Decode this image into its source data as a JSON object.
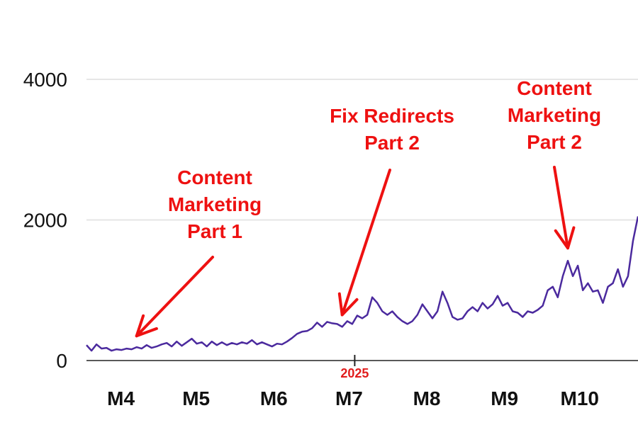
{
  "chart_data": {
    "type": "line",
    "title": "",
    "xlabel": "",
    "ylabel": "",
    "ylim": [
      0,
      4000
    ],
    "yticks": [
      0,
      2000,
      4000
    ],
    "xlim": [
      "2025-03-16",
      "2025-10-22"
    ],
    "xtick_labels": [
      {
        "date": "2025-04-01",
        "label": "M4"
      },
      {
        "date": "2025-05-01",
        "label": "M5"
      },
      {
        "date": "2025-06-01",
        "label": "M6"
      },
      {
        "date": "2025-07-01",
        "label": "M7"
      },
      {
        "date": "2025-08-01",
        "label": "M8"
      },
      {
        "date": "2025-09-01",
        "label": "M9"
      },
      {
        "date": "2025-10-01",
        "label": "M10"
      }
    ],
    "year_marker": {
      "date": "2025-07-01",
      "label": "2025"
    },
    "grid": "horizontal",
    "legend": "none",
    "colors": {
      "line": "#4b2a9e",
      "annotation": "#ee1111",
      "grid": "#e6e6e6",
      "year_marker": "#e11d1d"
    },
    "series": [
      {
        "points": [
          [
            "2025-03-16",
            220
          ],
          [
            "2025-03-18",
            140
          ],
          [
            "2025-03-20",
            230
          ],
          [
            "2025-03-22",
            170
          ],
          [
            "2025-03-24",
            180
          ],
          [
            "2025-03-26",
            140
          ],
          [
            "2025-03-28",
            160
          ],
          [
            "2025-03-30",
            150
          ],
          [
            "2025-04-01",
            170
          ],
          [
            "2025-04-03",
            160
          ],
          [
            "2025-04-05",
            190
          ],
          [
            "2025-04-07",
            170
          ],
          [
            "2025-04-09",
            220
          ],
          [
            "2025-04-11",
            180
          ],
          [
            "2025-04-13",
            200
          ],
          [
            "2025-04-15",
            230
          ],
          [
            "2025-04-17",
            250
          ],
          [
            "2025-04-19",
            200
          ],
          [
            "2025-04-21",
            270
          ],
          [
            "2025-04-23",
            210
          ],
          [
            "2025-04-25",
            260
          ],
          [
            "2025-04-27",
            310
          ],
          [
            "2025-04-29",
            240
          ],
          [
            "2025-05-01",
            260
          ],
          [
            "2025-05-03",
            200
          ],
          [
            "2025-05-05",
            270
          ],
          [
            "2025-05-07",
            220
          ],
          [
            "2025-05-09",
            260
          ],
          [
            "2025-05-11",
            220
          ],
          [
            "2025-05-13",
            250
          ],
          [
            "2025-05-15",
            230
          ],
          [
            "2025-05-17",
            260
          ],
          [
            "2025-05-19",
            240
          ],
          [
            "2025-05-21",
            290
          ],
          [
            "2025-05-23",
            230
          ],
          [
            "2025-05-25",
            260
          ],
          [
            "2025-05-27",
            230
          ],
          [
            "2025-05-29",
            200
          ],
          [
            "2025-05-31",
            240
          ],
          [
            "2025-06-02",
            230
          ],
          [
            "2025-06-04",
            270
          ],
          [
            "2025-06-06",
            320
          ],
          [
            "2025-06-08",
            380
          ],
          [
            "2025-06-10",
            410
          ],
          [
            "2025-06-12",
            420
          ],
          [
            "2025-06-14",
            460
          ],
          [
            "2025-06-16",
            540
          ],
          [
            "2025-06-18",
            480
          ],
          [
            "2025-06-20",
            550
          ],
          [
            "2025-06-22",
            530
          ],
          [
            "2025-06-24",
            520
          ],
          [
            "2025-06-26",
            480
          ],
          [
            "2025-06-28",
            560
          ],
          [
            "2025-06-30",
            520
          ],
          [
            "2025-07-02",
            640
          ],
          [
            "2025-07-04",
            600
          ],
          [
            "2025-07-06",
            650
          ],
          [
            "2025-07-08",
            900
          ],
          [
            "2025-07-10",
            820
          ],
          [
            "2025-07-12",
            700
          ],
          [
            "2025-07-14",
            650
          ],
          [
            "2025-07-16",
            700
          ],
          [
            "2025-07-18",
            620
          ],
          [
            "2025-07-20",
            560
          ],
          [
            "2025-07-22",
            520
          ],
          [
            "2025-07-24",
            560
          ],
          [
            "2025-07-26",
            650
          ],
          [
            "2025-07-28",
            800
          ],
          [
            "2025-07-30",
            700
          ],
          [
            "2025-08-01",
            600
          ],
          [
            "2025-08-03",
            700
          ],
          [
            "2025-08-05",
            980
          ],
          [
            "2025-08-07",
            820
          ],
          [
            "2025-08-09",
            620
          ],
          [
            "2025-08-11",
            580
          ],
          [
            "2025-08-13",
            600
          ],
          [
            "2025-08-15",
            700
          ],
          [
            "2025-08-17",
            760
          ],
          [
            "2025-08-19",
            700
          ],
          [
            "2025-08-21",
            820
          ],
          [
            "2025-08-23",
            740
          ],
          [
            "2025-08-25",
            800
          ],
          [
            "2025-08-27",
            920
          ],
          [
            "2025-08-29",
            780
          ],
          [
            "2025-08-31",
            820
          ],
          [
            "2025-09-02",
            700
          ],
          [
            "2025-09-04",
            680
          ],
          [
            "2025-09-06",
            620
          ],
          [
            "2025-09-08",
            700
          ],
          [
            "2025-09-10",
            680
          ],
          [
            "2025-09-12",
            720
          ],
          [
            "2025-09-14",
            780
          ],
          [
            "2025-09-16",
            1000
          ],
          [
            "2025-09-18",
            1050
          ],
          [
            "2025-09-20",
            900
          ],
          [
            "2025-09-22",
            1200
          ],
          [
            "2025-09-24",
            1420
          ],
          [
            "2025-09-26",
            1200
          ],
          [
            "2025-09-28",
            1350
          ],
          [
            "2025-09-30",
            1000
          ],
          [
            "2025-10-02",
            1100
          ],
          [
            "2025-10-04",
            980
          ],
          [
            "2025-10-06",
            1000
          ],
          [
            "2025-10-08",
            820
          ],
          [
            "2025-10-10",
            1050
          ],
          [
            "2025-10-12",
            1100
          ],
          [
            "2025-10-14",
            1300
          ],
          [
            "2025-10-16",
            1050
          ],
          [
            "2025-10-18",
            1200
          ],
          [
            "2025-10-20",
            1700
          ],
          [
            "2025-10-22",
            2050
          ]
        ]
      }
    ],
    "annotations": [
      {
        "lines": [
          "Content",
          "Marketing",
          "Part 1"
        ],
        "target": [
          "2025-04-05",
          350
        ]
      },
      {
        "lines": [
          "Fix Redirects",
          "Part 2"
        ],
        "target": [
          "2025-06-26",
          650
        ]
      },
      {
        "lines": [
          "Content",
          "Marketing",
          "Part 2"
        ],
        "target": [
          "2025-09-24",
          1600
        ]
      }
    ]
  }
}
